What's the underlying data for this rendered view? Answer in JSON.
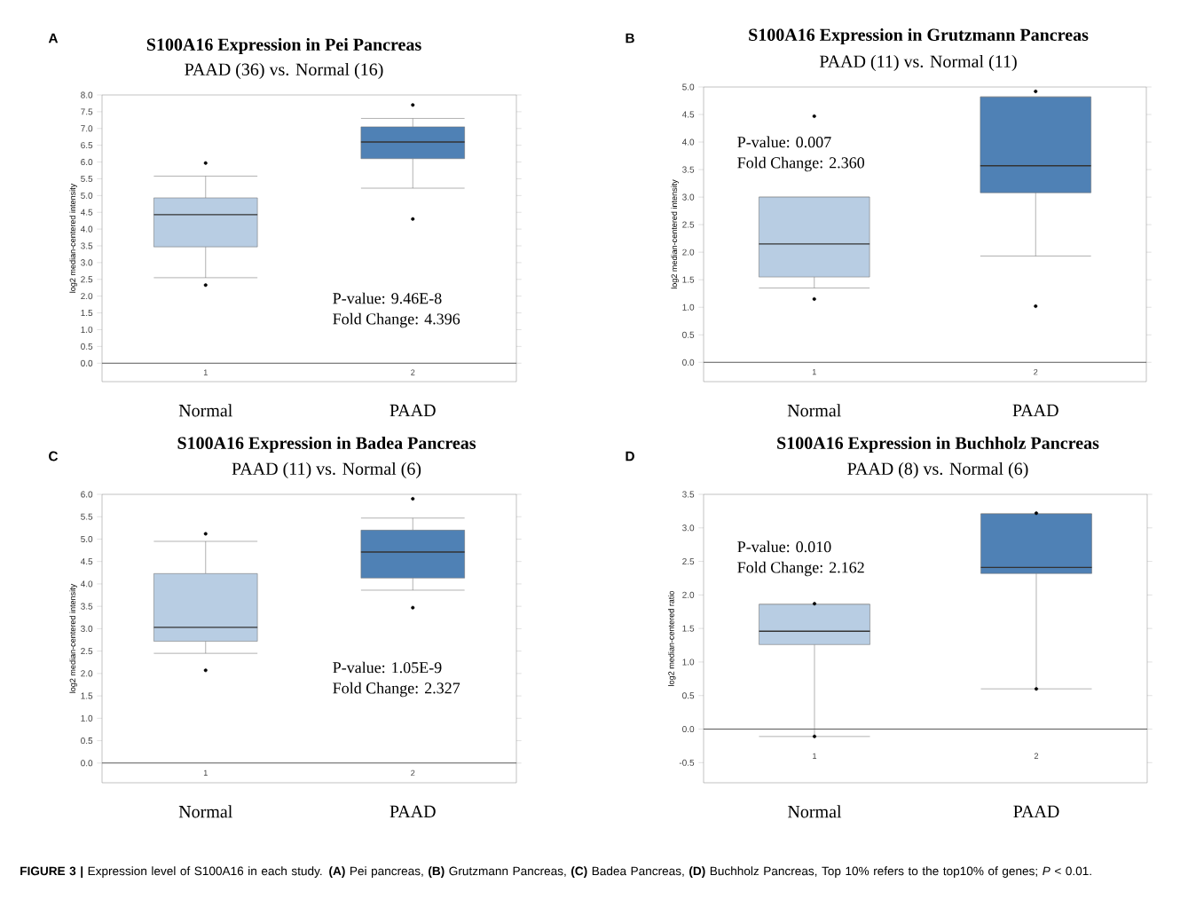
{
  "chart_data": [
    {
      "type": "box",
      "title": "S100A16 Expression in Pei Pancreas",
      "subtitle": "PAAD (36) vs. Normal (16)",
      "ylabel": "log2 median-centered intensity",
      "categories": [
        "Normal",
        "PAAD"
      ],
      "colors": [
        "#b8cde3",
        "#4f81b5"
      ],
      "boxes": [
        {
          "low": 2.55,
          "q1": 3.47,
          "median": 4.43,
          "q3": 4.93,
          "high": 5.58,
          "outliers": [
            5.97,
            2.33
          ]
        },
        {
          "low": 5.22,
          "q1": 6.1,
          "median": 6.6,
          "q3": 7.05,
          "high": 7.3,
          "outliers": [
            7.7,
            4.3
          ]
        }
      ],
      "ylim": [
        -0.55,
        8.0
      ],
      "yticks": [
        {
          "value": 0,
          "label": "0.0"
        },
        {
          "value": 0.5,
          "label": "0.5"
        },
        {
          "value": 1,
          "label": "1.0"
        },
        {
          "value": 1.5,
          "label": "1.5"
        },
        {
          "value": 2,
          "label": "2.0"
        },
        {
          "value": 2.5,
          "label": "2.5"
        },
        {
          "value": 3,
          "label": "3.0"
        },
        {
          "value": 3.5,
          "label": "3.5"
        },
        {
          "value": 4,
          "label": "4.0"
        },
        {
          "value": 4.5,
          "label": "4.5"
        },
        {
          "value": 5,
          "label": "5.0"
        },
        {
          "value": 5.5,
          "label": "5.5"
        },
        {
          "value": 6,
          "label": "6.0"
        },
        {
          "value": 6.5,
          "label": "6.5"
        },
        {
          "value": 7,
          "label": "7.0"
        },
        {
          "value": 7.5,
          "label": "7.5"
        },
        {
          "value": 8,
          "label": "8.0"
        }
      ],
      "ref_lines": [
        {
          "axis": "y",
          "value": 0
        }
      ],
      "annotations": [
        "A",
        "1",
        "2",
        "P-value: 9.46E-8",
        "Fold Change: 4.396"
      ]
    },
    {
      "type": "box",
      "title": "S100A16 Expression in Grutzmann Pancreas",
      "subtitle": "PAAD (11) vs. Normal (11)",
      "ylabel": "log2 median-centered intensity",
      "categories": [
        "Normal",
        "PAAD"
      ],
      "colors": [
        "#b8cde3",
        "#4f81b5"
      ],
      "boxes": [
        {
          "low": 1.35,
          "q1": 1.55,
          "median": 2.15,
          "q3": 3.0,
          "high": 3.0,
          "outliers": [
            4.47,
            1.15
          ]
        },
        {
          "low": 1.93,
          "q1": 3.08,
          "median": 3.57,
          "q3": 4.82,
          "high": 4.82,
          "outliers": [
            4.92,
            1.02
          ]
        }
      ],
      "ylim": [
        -0.35,
        5.0
      ],
      "yticks": [
        {
          "value": 0,
          "label": "0.0"
        },
        {
          "value": 0.5,
          "label": "0.5"
        },
        {
          "value": 1,
          "label": "1.0"
        },
        {
          "value": 1.5,
          "label": "1.5"
        },
        {
          "value": 2,
          "label": "2.0"
        },
        {
          "value": 2.5,
          "label": "2.5"
        },
        {
          "value": 3,
          "label": "3.0"
        },
        {
          "value": 3.5,
          "label": "3.5"
        },
        {
          "value": 4,
          "label": "4.0"
        },
        {
          "value": 4.5,
          "label": "4.5"
        },
        {
          "value": 5,
          "label": "5.0"
        }
      ],
      "ref_lines": [
        {
          "axis": "y",
          "value": 0
        }
      ],
      "annotations": [
        "B",
        "1",
        "2",
        "P-value: 0.007",
        "Fold Change: 2.360"
      ]
    },
    {
      "type": "box",
      "title": "S100A16 Expression in Badea Pancreas",
      "subtitle": "PAAD (11) vs. Normal (6)",
      "ylabel": "log2 median-centered intensity",
      "categories": [
        "Normal",
        "PAAD"
      ],
      "colors": [
        "#b8cde3",
        "#4f81b5"
      ],
      "boxes": [
        {
          "low": 2.45,
          "q1": 2.72,
          "median": 3.03,
          "q3": 4.23,
          "high": 4.95,
          "outliers": [
            5.12,
            2.07
          ]
        },
        {
          "low": 3.86,
          "q1": 4.13,
          "median": 4.71,
          "q3": 5.2,
          "high": 5.47,
          "outliers": [
            5.9,
            3.47
          ]
        }
      ],
      "ylim": [
        -0.44,
        6.0
      ],
      "yticks": [
        {
          "value": 0,
          "label": "0.0"
        },
        {
          "value": 0.5,
          "label": "0.5"
        },
        {
          "value": 1,
          "label": "1.0"
        },
        {
          "value": 1.5,
          "label": "1.5"
        },
        {
          "value": 2,
          "label": "2.0"
        },
        {
          "value": 2.5,
          "label": "2.5"
        },
        {
          "value": 3,
          "label": "3.0"
        },
        {
          "value": 3.5,
          "label": "3.5"
        },
        {
          "value": 4,
          "label": "4.0"
        },
        {
          "value": 4.5,
          "label": "4.5"
        },
        {
          "value": 5,
          "label": "5.0"
        },
        {
          "value": 5.5,
          "label": "5.5"
        },
        {
          "value": 6,
          "label": "6.0"
        }
      ],
      "ref_lines": [
        {
          "axis": "y",
          "value": 0
        }
      ],
      "annotations": [
        "C",
        "1",
        "2",
        "P-value:  1.05E-9",
        "Fold Change: 2.327"
      ]
    },
    {
      "type": "box",
      "title": "S100A16 Expression in Buchholz Pancreas",
      "subtitle": "PAAD (8) vs. Normal (6)",
      "ylabel": "log2 median-centered ratio",
      "categories": [
        "Normal",
        "PAAD"
      ],
      "colors": [
        "#b8cde3",
        "#4f81b5"
      ],
      "boxes": [
        {
          "low": -0.11,
          "q1": 1.26,
          "median": 1.46,
          "q3": 1.86,
          "high": 1.86,
          "outliers": [
            1.87,
            -0.11
          ]
        },
        {
          "low": 0.6,
          "q1": 2.32,
          "median": 2.41,
          "q3": 3.21,
          "high": 3.21,
          "outliers": [
            3.22,
            0.6
          ]
        }
      ],
      "ylim": [
        -0.8,
        3.5
      ],
      "yticks": [
        {
          "value": -0.5,
          "label": "-0.5"
        },
        {
          "value": 0,
          "label": "0.0"
        },
        {
          "value": 0.5,
          "label": "0.5"
        },
        {
          "value": 1,
          "label": "1.0"
        },
        {
          "value": 1.5,
          "label": "1.5"
        },
        {
          "value": 2,
          "label": "2.0"
        },
        {
          "value": 2.5,
          "label": "2.5"
        },
        {
          "value": 3,
          "label": "3.0"
        },
        {
          "value": 3.5,
          "label": "3.5"
        }
      ],
      "ref_lines": [
        {
          "axis": "y",
          "value": 0
        }
      ],
      "annotations": [
        "D",
        "1",
        "2",
        "P-value:  0.010",
        "Fold Change: 2.162",
        "**FIGURE 3 |** Expression level of S100A16 in each study. **(A)** Pei pancreas, **(B)** Grutzmann Pancreas, **(C)** Badea Pancreas, **(D)** Buchholz Pancreas, Top 10% refers to the top10% of genes; *P* < 0.01."
      ]
    }
  ]
}
